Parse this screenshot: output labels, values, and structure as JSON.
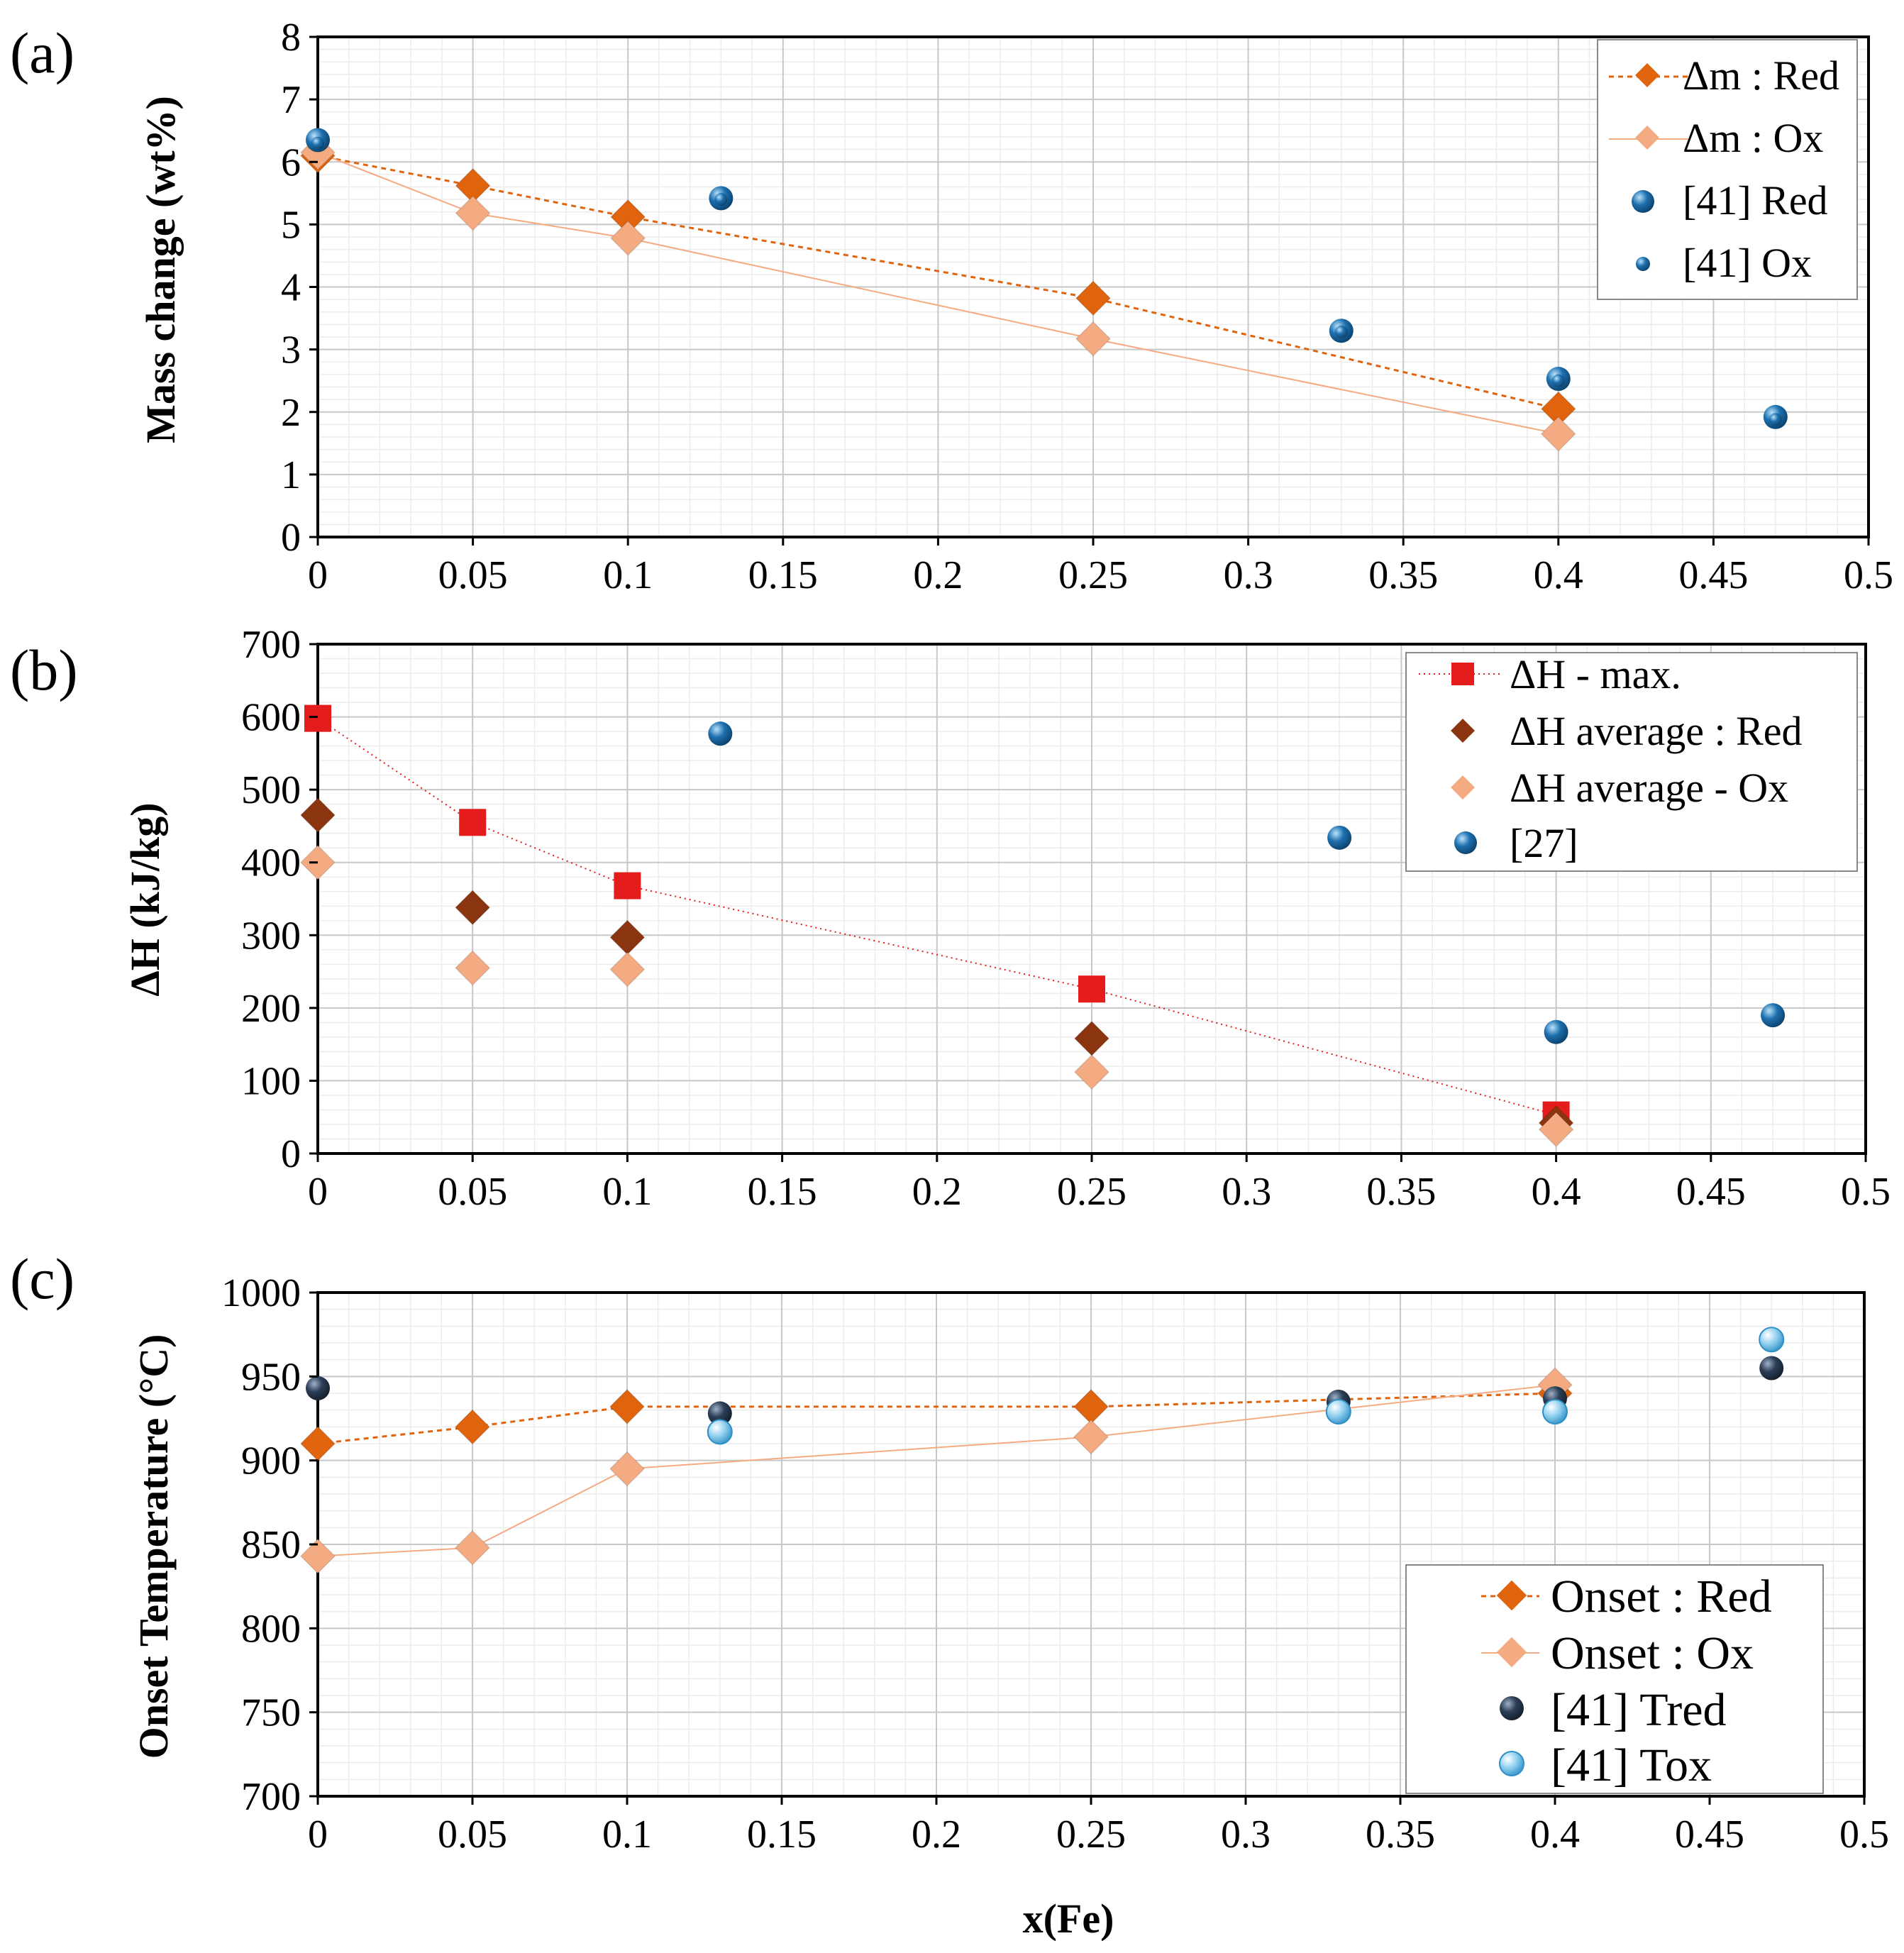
{
  "figure": {
    "xlabel": "x(Fe)",
    "colors": {
      "red_dark": "#e0630e",
      "ox_light": "#f5ab82",
      "ref_blue": "#1d6fae",
      "max_red": "#e41c1c",
      "avg_brown": "#8b3510",
      "tred_dark": "#2c3e56",
      "tox_light": "#8fcfef"
    }
  },
  "chart_data": [
    {
      "id": "a",
      "type": "line",
      "panel_label": "(a)",
      "ylabel": "Mass change (wt%)",
      "xlim": [
        0,
        0.5
      ],
      "ylim": [
        0,
        8
      ],
      "xticks": [
        "0",
        "0.05",
        "0.1",
        "0.15",
        "0.2",
        "0.25",
        "0.3",
        "0.35",
        "0.4",
        "0.45",
        "0.5"
      ],
      "yticks": [
        "0",
        "1",
        "2",
        "3",
        "4",
        "5",
        "6",
        "7",
        "8"
      ],
      "legend_position": "top-right",
      "series": [
        {
          "name": "Δm : Red",
          "marker": "diamond",
          "line": "dashed",
          "color": "#e0630e",
          "x": [
            0,
            0.05,
            0.1,
            0.25,
            0.4
          ],
          "y": [
            6.1,
            5.62,
            5.12,
            3.82,
            2.05
          ]
        },
        {
          "name": "Δm : Ox",
          "marker": "diamond",
          "line": "solid-thin",
          "color": "#f5ab82",
          "x": [
            0,
            0.05,
            0.1,
            0.25,
            0.4
          ],
          "y": [
            6.15,
            5.18,
            4.78,
            3.17,
            1.65
          ]
        },
        {
          "name": "[41] Red",
          "marker": "circle",
          "line": "none",
          "color": "#1d6fae",
          "x": [
            0,
            0.13,
            0.33,
            0.4,
            0.47
          ],
          "y": [
            6.35,
            5.42,
            3.3,
            2.53,
            1.92
          ]
        },
        {
          "name": "[41] Ox",
          "marker": "circle-small",
          "line": "none",
          "color": "#1d6fae",
          "x": [
            0,
            0.13,
            0.33,
            0.4,
            0.47
          ],
          "y": [
            6.3,
            5.4,
            3.28,
            2.5,
            1.88
          ]
        }
      ]
    },
    {
      "id": "b",
      "type": "line",
      "panel_label": "(b)",
      "ylabel": "ΔH (kJ/kg)",
      "xlim": [
        0,
        0.5
      ],
      "ylim": [
        0,
        700
      ],
      "xticks": [
        "0",
        "0.05",
        "0.1",
        "0.15",
        "0.2",
        "0.25",
        "0.3",
        "0.35",
        "0.4",
        "0.45",
        "0.5"
      ],
      "yticks": [
        "0",
        "100",
        "200",
        "300",
        "400",
        "500",
        "600",
        "700"
      ],
      "legend_position": "top-right",
      "series": [
        {
          "name": "ΔH - max.",
          "marker": "square",
          "line": "dotted",
          "color": "#e41c1c",
          "x": [
            0,
            0.05,
            0.1,
            0.25,
            0.4
          ],
          "y": [
            598,
            455,
            368,
            226,
            53
          ]
        },
        {
          "name": "ΔH average : Red",
          "marker": "diamond",
          "line": "none",
          "color": "#8b3510",
          "x": [
            0,
            0.05,
            0.1,
            0.25,
            0.4
          ],
          "y": [
            465,
            338,
            297,
            158,
            42
          ]
        },
        {
          "name": "ΔH average - Ox",
          "marker": "diamond",
          "line": "none",
          "color": "#f5ab82",
          "x": [
            0,
            0.05,
            0.1,
            0.25,
            0.4
          ],
          "y": [
            400,
            255,
            253,
            112,
            33
          ]
        },
        {
          "name": "[27]",
          "marker": "circle",
          "line": "none",
          "color": "#1d6fae",
          "x": [
            0.13,
            0.33,
            0.4,
            0.47
          ],
          "y": [
            577,
            434,
            167,
            190
          ]
        }
      ]
    },
    {
      "id": "c",
      "type": "line",
      "panel_label": "(c)",
      "ylabel": "Onset Temperature (°C)",
      "xlim": [
        0,
        0.5
      ],
      "ylim": [
        700,
        1000
      ],
      "xticks": [
        "0",
        "0.05",
        "0.1",
        "0.15",
        "0.2",
        "0.25",
        "0.3",
        "0.35",
        "0.4",
        "0.45",
        "0.5"
      ],
      "yticks": [
        "700",
        "750",
        "800",
        "850",
        "900",
        "950",
        "1000"
      ],
      "legend_position": "bottom-right",
      "series": [
        {
          "name": "Onset : Red",
          "marker": "diamond",
          "line": "dashed",
          "color": "#e0630e",
          "x": [
            0,
            0.05,
            0.1,
            0.25,
            0.4
          ],
          "y": [
            910,
            920,
            932,
            932,
            940
          ]
        },
        {
          "name": "Onset : Ox",
          "marker": "diamond",
          "line": "solid-thin",
          "color": "#f5ab82",
          "x": [
            0,
            0.05,
            0.1,
            0.25,
            0.4
          ],
          "y": [
            843,
            848,
            895,
            914,
            945
          ]
        },
        {
          "name": "[41] Tred",
          "marker": "circle",
          "line": "none",
          "color": "#2c3e56",
          "x": [
            0,
            0.13,
            0.33,
            0.4,
            0.47
          ],
          "y": [
            943,
            928,
            935,
            937,
            955
          ]
        },
        {
          "name": "[41] Tox",
          "marker": "circle",
          "line": "none",
          "color": "#8fcfef",
          "x": [
            0.13,
            0.33,
            0.4,
            0.47
          ],
          "y": [
            917,
            929,
            929,
            972
          ]
        }
      ]
    }
  ]
}
